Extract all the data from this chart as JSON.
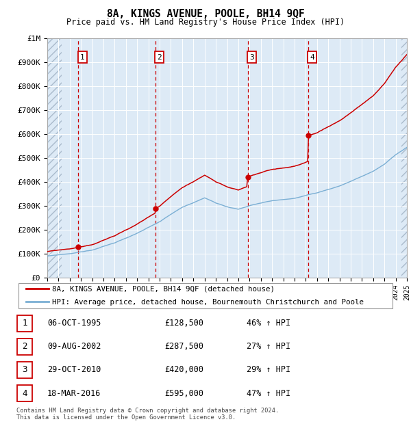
{
  "title": "8A, KINGS AVENUE, POOLE, BH14 9QF",
  "subtitle": "Price paid vs. HM Land Registry's House Price Index (HPI)",
  "x_start_year": 1993,
  "x_end_year": 2025,
  "y_max": 1000000,
  "y_ticks": [
    0,
    100000,
    200000,
    300000,
    400000,
    500000,
    600000,
    700000,
    800000,
    900000,
    1000000
  ],
  "y_tick_labels": [
    "£0",
    "£100K",
    "£200K",
    "£300K",
    "£400K",
    "£500K",
    "£600K",
    "£700K",
    "£800K",
    "£900K",
    "£1M"
  ],
  "sale_points": [
    {
      "year": 1995.77,
      "price": 128500,
      "label": "1"
    },
    {
      "year": 2002.61,
      "price": 287500,
      "label": "2"
    },
    {
      "year": 2010.83,
      "price": 420000,
      "label": "3"
    },
    {
      "year": 2016.21,
      "price": 595000,
      "label": "4"
    }
  ],
  "legend_line1": "8A, KINGS AVENUE, POOLE, BH14 9QF (detached house)",
  "legend_line2": "HPI: Average price, detached house, Bournemouth Christchurch and Poole",
  "table_rows": [
    {
      "num": "1",
      "date": "06-OCT-1995",
      "price": "£128,500",
      "hpi": "46% ↑ HPI"
    },
    {
      "num": "2",
      "date": "09-AUG-2002",
      "price": "£287,500",
      "hpi": "27% ↑ HPI"
    },
    {
      "num": "3",
      "date": "29-OCT-2010",
      "price": "£420,000",
      "hpi": "29% ↑ HPI"
    },
    {
      "num": "4",
      "date": "18-MAR-2016",
      "price": "£595,000",
      "hpi": "47% ↑ HPI"
    }
  ],
  "footnote": "Contains HM Land Registry data © Crown copyright and database right 2024.\nThis data is licensed under the Open Government Licence v3.0.",
  "hpi_color": "#7bafd4",
  "price_color": "#cc0000",
  "bg_color": "#ddeaf6",
  "grid_color": "#ffffff",
  "vline_color": "#cc0000"
}
